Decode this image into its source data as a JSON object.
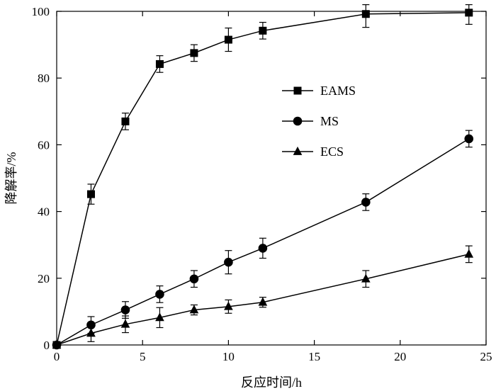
{
  "chart_data": {
    "type": "line",
    "xlabel": "反应时间/h",
    "ylabel": "降解率/%",
    "xlim": [
      0,
      25
    ],
    "ylim": [
      0,
      100
    ],
    "x_ticks": [
      "0",
      "5",
      "10",
      "15",
      "20",
      "25"
    ],
    "y_ticks": [
      "0",
      "20",
      "40",
      "60",
      "80",
      "100"
    ],
    "grid": false,
    "legend_position": "center-right",
    "series": [
      {
        "name": "EAMS",
        "marker": "square",
        "x": [
          0,
          2,
          4,
          6,
          8,
          10,
          12,
          18,
          24
        ],
        "y": [
          0,
          45.2,
          67.0,
          84.2,
          87.5,
          91.5,
          94.2,
          99.2,
          99.6
        ],
        "err": [
          0,
          3.0,
          2.5,
          2.5,
          2.5,
          3.5,
          2.5,
          4.0,
          3.5
        ]
      },
      {
        "name": "MS",
        "marker": "circle",
        "x": [
          0,
          2,
          4,
          6,
          8,
          10,
          12,
          18,
          24
        ],
        "y": [
          0,
          6.0,
          10.5,
          15.2,
          19.8,
          24.8,
          29.0,
          42.8,
          61.8
        ],
        "err": [
          0,
          2.5,
          2.5,
          2.5,
          2.5,
          3.5,
          3.0,
          2.5,
          2.5
        ]
      },
      {
        "name": "ECS",
        "marker": "triangle",
        "x": [
          0,
          2,
          4,
          6,
          8,
          10,
          12,
          18,
          24
        ],
        "y": [
          0,
          3.5,
          6.2,
          8.2,
          10.5,
          11.5,
          12.8,
          19.8,
          27.2
        ],
        "err": [
          0,
          2.5,
          2.5,
          3.0,
          1.5,
          2.0,
          1.5,
          2.5,
          2.5
        ]
      }
    ]
  }
}
